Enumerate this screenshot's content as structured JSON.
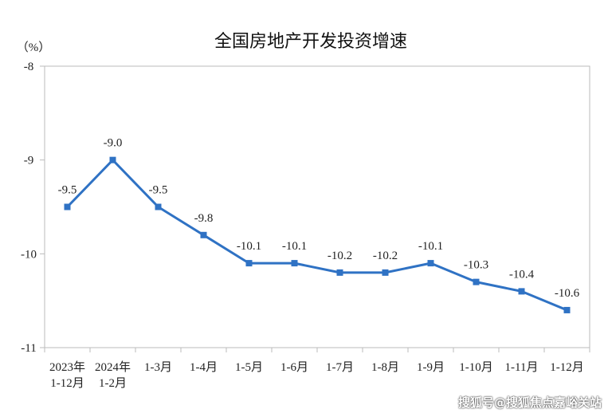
{
  "chart_data": {
    "type": "line",
    "title": "全国房地产开发投资增速",
    "ylabel": "（%）",
    "xlabel": "",
    "categories": [
      [
        "2023年",
        "1-12月"
      ],
      [
        "2024年",
        "1-2月"
      ],
      [
        "1-3月"
      ],
      [
        "1-4月"
      ],
      [
        "1-5月"
      ],
      [
        "1-6月"
      ],
      [
        "1-7月"
      ],
      [
        "1-8月"
      ],
      [
        "1-9月"
      ],
      [
        "1-10月"
      ],
      [
        "1-11月"
      ],
      [
        "1-12月"
      ]
    ],
    "values": [
      -9.5,
      -9.0,
      -9.5,
      -9.8,
      -10.1,
      -10.1,
      -10.2,
      -10.2,
      -10.1,
      -10.3,
      -10.4,
      -10.6
    ],
    "data_labels": [
      "-9.5",
      "-9.0",
      "-9.5",
      "-9.8",
      "-10.1",
      "-10.1",
      "-10.2",
      "-10.2",
      "-10.1",
      "-10.3",
      "-10.4",
      "-10.6"
    ],
    "ylim": [
      -11,
      -8
    ],
    "yticks": [
      "-8",
      "-9",
      "-10",
      "-11"
    ],
    "grid": false,
    "line_color": "#2f72c4"
  },
  "watermark": "搜狐号@搜狐焦点嘉峪关站"
}
